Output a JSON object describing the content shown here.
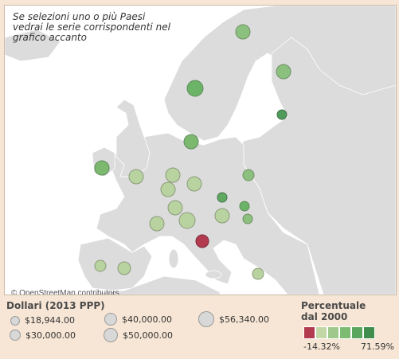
{
  "instruction": "Se selezioni uno o più Paesi vedrai le serie corrispondenti nel grafico accanto",
  "attribution": "© OpenStreetMap contributors",
  "size_legend": {
    "title": "Dollari (2013 PPP)",
    "items": [
      "$18,944.00",
      "$40,000.00",
      "$56,340.00",
      "$30,000.00",
      "$50,000.00"
    ]
  },
  "color_legend": {
    "title_line1": "Percentuale",
    "title_line2": "dal 2000",
    "min_label": "-14.32%",
    "max_label": "71.59%",
    "steps": [
      "#b23b50",
      "#c3d6a6",
      "#9fc98c",
      "#7dbb72",
      "#5aa65e",
      "#3f8e4e"
    ]
  },
  "colors": {
    "water": "#ffffff",
    "land": "#dcdcdc",
    "background": "#f7e6d5"
  }
}
